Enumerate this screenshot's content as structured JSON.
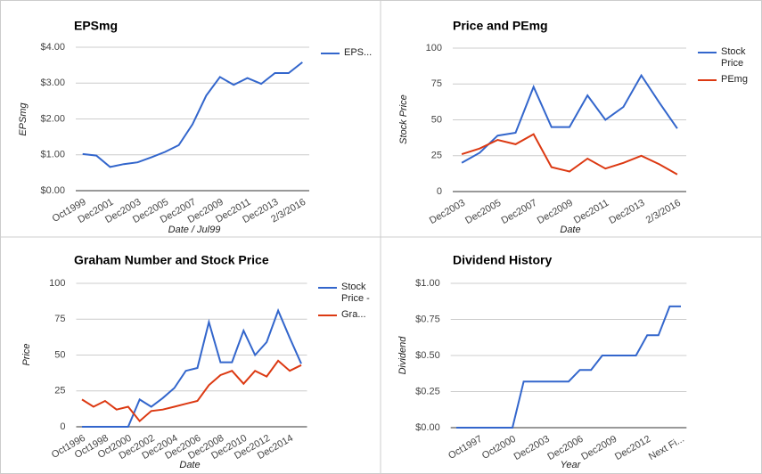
{
  "chart_data": [
    {
      "type": "line",
      "title": "EPSmg",
      "x_label": "Date / Jul99",
      "y_label": "EPSmg",
      "categories": [
        "Oct1999",
        null,
        "Dec2001",
        null,
        "Dec2003",
        null,
        "Dec2005",
        null,
        "Dec2007",
        null,
        "Dec2009",
        null,
        "Dec2011",
        null,
        "Dec2013",
        null,
        "2/3/2016"
      ],
      "series": [
        {
          "name": "EPS...",
          "color": "#3366cc",
          "values": [
            1.02,
            0.98,
            0.66,
            0.74,
            0.79,
            0.93,
            1.08,
            1.27,
            1.85,
            2.65,
            3.17,
            2.95,
            3.14,
            2.98,
            3.28,
            3.28,
            3.58
          ]
        }
      ],
      "ylim": [
        0,
        4
      ],
      "yticks": [
        {
          "value": 0,
          "label": "$0.00"
        },
        {
          "value": 1,
          "label": "$1.00"
        },
        {
          "value": 2,
          "label": "$2.00"
        },
        {
          "value": 3,
          "label": "$3.00"
        },
        {
          "value": 4,
          "label": "$4.00"
        }
      ],
      "grid": true,
      "legend": "right"
    },
    {
      "type": "line",
      "title": "Price and PEmg",
      "x_label": "Date",
      "y_label": "Stock Price",
      "categories": [
        "Dec2003",
        null,
        "Dec2005",
        null,
        "Dec2007",
        null,
        "Dec2009",
        null,
        "Dec2011",
        null,
        "Dec2013",
        null,
        "2/3/2016"
      ],
      "series": [
        {
          "name": "Stock Price",
          "color": "#3366cc",
          "values": [
            20,
            27,
            39,
            41,
            73,
            45,
            45,
            67,
            50,
            59,
            81,
            62,
            44
          ]
        },
        {
          "name": "PEmg",
          "color": "#dc3912",
          "values": [
            26,
            30,
            36,
            33,
            40,
            17,
            14,
            23,
            16,
            20,
            25,
            19,
            12
          ]
        }
      ],
      "ylim": [
        0,
        100
      ],
      "yticks": [
        0,
        25,
        50,
        75,
        100
      ],
      "grid": true,
      "legend": "right"
    },
    {
      "type": "line",
      "title": "Graham Number and Stock Price",
      "x_label": "Date",
      "y_label": "Price",
      "categories": [
        "Oct1996",
        null,
        "Oct1998",
        null,
        "Oct2000",
        null,
        "Dec2002",
        null,
        "Dec2004",
        null,
        "Dec2006",
        null,
        "Dec2008",
        null,
        "Dec2010",
        null,
        "Dec2012",
        null,
        "Dec2014",
        null
      ],
      "series": [
        {
          "name": "Stock Price -",
          "color": "#3366cc",
          "values": [
            0,
            0,
            0,
            0,
            0,
            19,
            14,
            20,
            27,
            39,
            41,
            73,
            45,
            45,
            67,
            50,
            59,
            81,
            62,
            44
          ]
        },
        {
          "name": "Gra...",
          "color": "#dc3912",
          "values": [
            19,
            14,
            18,
            12,
            14,
            4,
            11,
            12,
            14,
            16,
            18,
            29,
            36,
            39,
            30,
            39,
            35,
            46,
            39,
            43
          ]
        }
      ],
      "ylim": [
        0,
        100
      ],
      "yticks": [
        0,
        25,
        50,
        75,
        100
      ],
      "grid": true,
      "legend": "right"
    },
    {
      "type": "line",
      "title": "Dividend History",
      "x_label": "Year",
      "y_label": "Dividend",
      "categories": [
        null,
        null,
        "Oct1997",
        null,
        null,
        "Oct2000",
        null,
        null,
        "Dec2003",
        null,
        null,
        "Dec2006",
        null,
        null,
        "Dec2009",
        null,
        null,
        "Dec2012",
        null,
        null,
        "Next Fi..."
      ],
      "series": [
        {
          "color": "#3366cc",
          "values": [
            0,
            0,
            0,
            0,
            0,
            0,
            0.32,
            0.32,
            0.32,
            0.32,
            0.32,
            0.4,
            0.4,
            0.5,
            0.5,
            0.5,
            0.5,
            0.64,
            0.64,
            0.84,
            0.84
          ]
        }
      ],
      "ylim": [
        0,
        1
      ],
      "yticks": [
        {
          "value": 0,
          "label": "$0.00"
        },
        {
          "value": 0.25,
          "label": "$0.25"
        },
        {
          "value": 0.5,
          "label": "$0.50"
        },
        {
          "value": 0.75,
          "label": "$0.75"
        },
        {
          "value": 1,
          "label": "$1.00"
        }
      ],
      "grid": true
    }
  ]
}
